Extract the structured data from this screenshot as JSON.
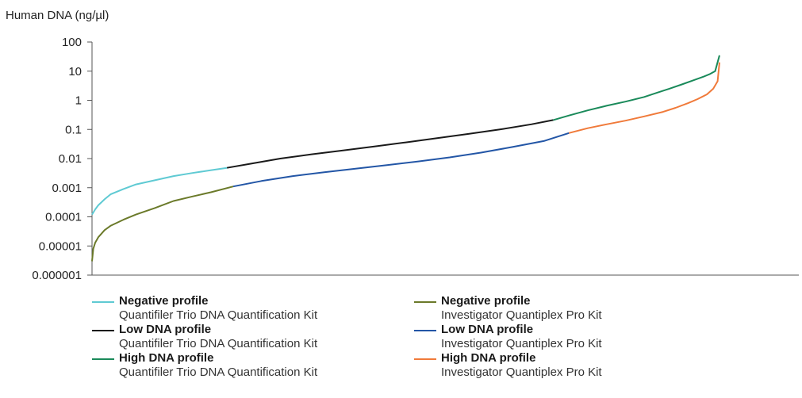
{
  "chart_data": {
    "type": "line",
    "ylabel": "Human DNA (ng/µl)",
    "yscale": "log",
    "ylim": [
      1e-06,
      100
    ],
    "yticks": [
      "100",
      "10",
      "1",
      "0.1",
      "0.01",
      "0.001",
      "0.0001",
      "0.00001",
      "0.000001"
    ],
    "x_range": [
      0,
      100
    ],
    "grid": false,
    "legend_position": "bottom",
    "series": [
      {
        "name": "Negative profile",
        "kit": "Quantifiler Trio DNA Quantification Kit",
        "color": "#5fcad3",
        "x": [
          0,
          0.5,
          1,
          2,
          3,
          5,
          7,
          10,
          13,
          16,
          19,
          21.5
        ],
        "y": [
          0.00012,
          0.00018,
          0.00025,
          0.0004,
          0.0006,
          0.0009,
          0.0013,
          0.0018,
          0.0025,
          0.0032,
          0.004,
          0.0048
        ]
      },
      {
        "name": "Low DNA profile",
        "kit": "Quantifiler Trio DNA Quantification Kit",
        "color": "#1a1a1a",
        "x": [
          21.5,
          25,
          30,
          35,
          40,
          45,
          50,
          55,
          60,
          65,
          70,
          73.5
        ],
        "y": [
          0.0048,
          0.0065,
          0.01,
          0.014,
          0.019,
          0.026,
          0.036,
          0.05,
          0.07,
          0.1,
          0.15,
          0.21
        ]
      },
      {
        "name": "High DNA profile",
        "kit": "Quantifiler Trio DNA Quantification Kit",
        "color": "#1a8a5a",
        "x": [
          73.5,
          76,
          79,
          82,
          85,
          88,
          90,
          92,
          94,
          96,
          97.5,
          98.5,
          99.3,
          100
        ],
        "y": [
          0.21,
          0.3,
          0.45,
          0.65,
          0.9,
          1.3,
          1.8,
          2.5,
          3.5,
          5,
          6.5,
          8,
          10,
          35
        ]
      },
      {
        "name": "Negative profile",
        "kit": "Investigator Quantiplex Pro Kit",
        "color": "#6b7a2a",
        "x": [
          0,
          0.2,
          0.5,
          1,
          2,
          3,
          5,
          7,
          10,
          13,
          16,
          19,
          22.5
        ],
        "y": [
          3e-06,
          8e-06,
          1.3e-05,
          2e-05,
          3.5e-05,
          5e-05,
          8e-05,
          0.00012,
          0.0002,
          0.00035,
          0.0005,
          0.0007,
          0.0011
        ]
      },
      {
        "name": "Low DNA profile",
        "kit": "Investigator Quantiplex Pro Kit",
        "color": "#2356a6",
        "x": [
          22.5,
          27,
          32,
          37,
          42,
          47,
          52,
          57,
          62,
          67,
          72,
          76
        ],
        "y": [
          0.0011,
          0.0017,
          0.0025,
          0.0034,
          0.0045,
          0.006,
          0.008,
          0.011,
          0.016,
          0.025,
          0.04,
          0.075
        ]
      },
      {
        "name": "High DNA profile",
        "kit": "Investigator Quantiplex Pro Kit",
        "color": "#f07a3a",
        "x": [
          76,
          79,
          82,
          85,
          88,
          91,
          93,
          95,
          96.5,
          98,
          99,
          99.7,
          100
        ],
        "y": [
          0.075,
          0.11,
          0.15,
          0.2,
          0.28,
          0.4,
          0.55,
          0.8,
          1.1,
          1.6,
          2.5,
          4.5,
          20
        ]
      }
    ]
  }
}
